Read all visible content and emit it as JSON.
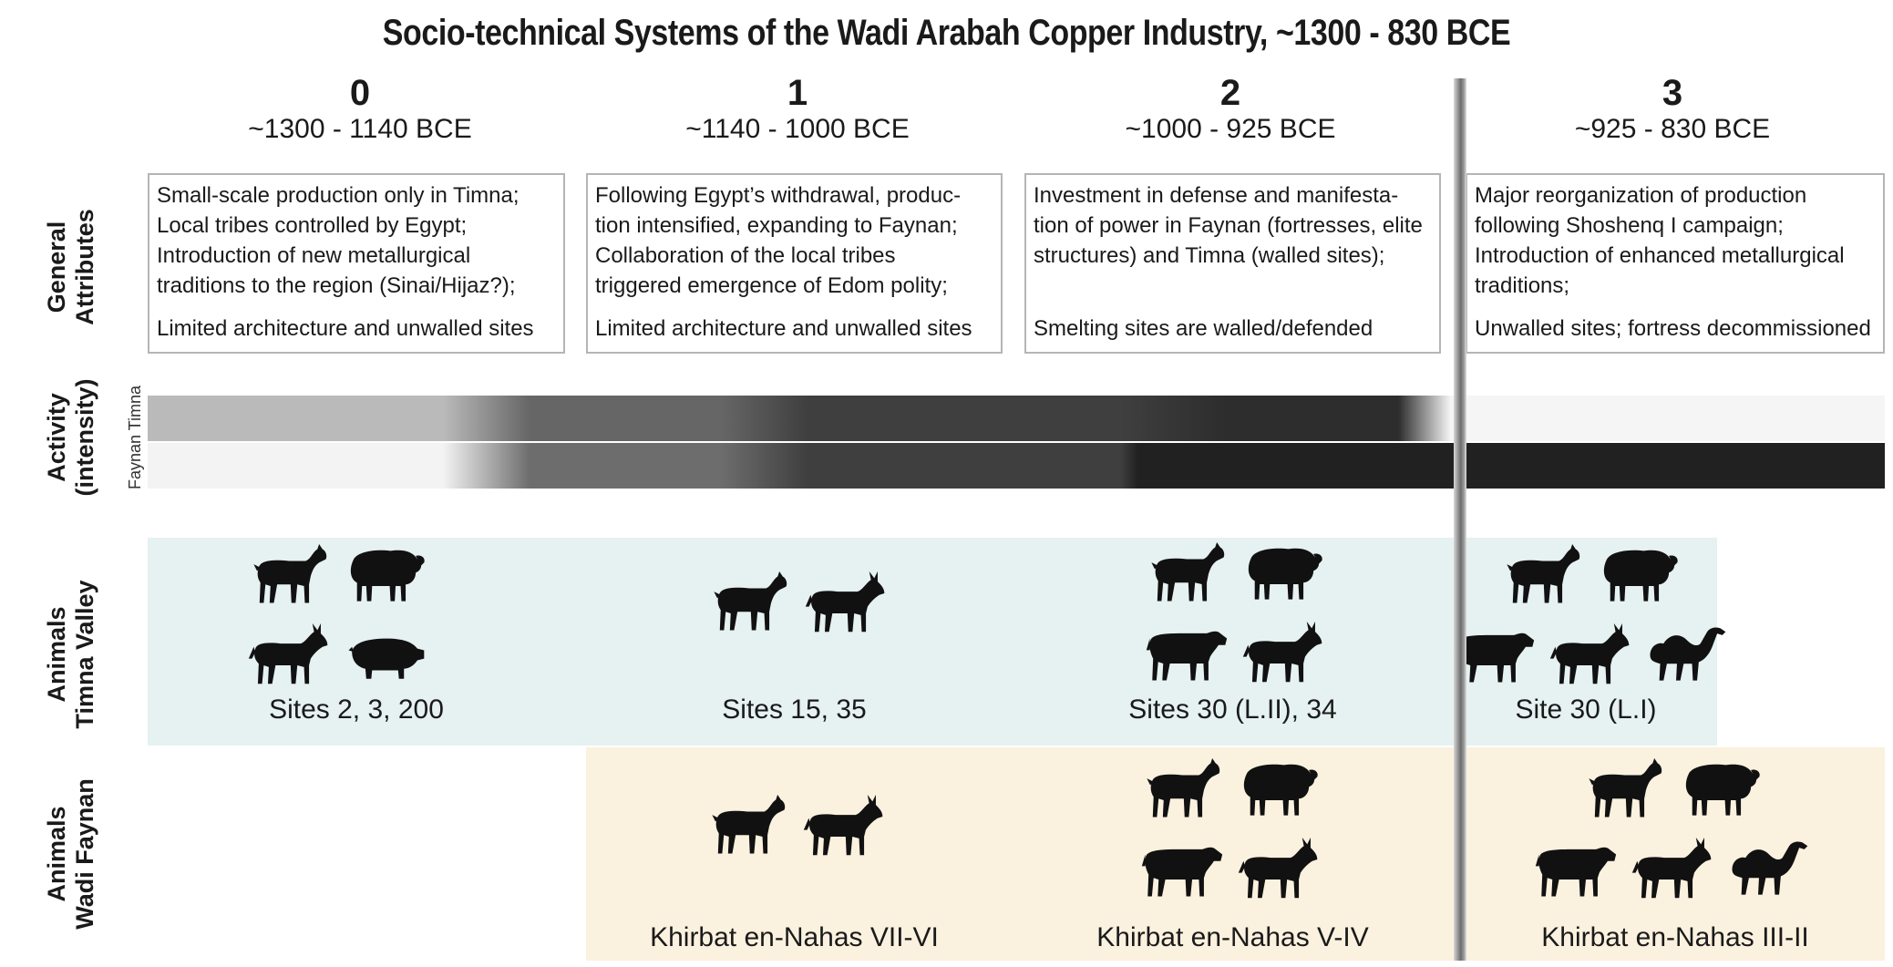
{
  "title": "Socio-technical Systems of the Wadi Arabah Copper Industry, ~1300 - 830 BCE",
  "colors": {
    "timna_zone": "#e6f1f1",
    "faynan_zone": "#fbf1df",
    "animal": "#111111",
    "box_border": "#b5b5b5"
  },
  "periods": [
    {
      "number": "0",
      "dates": "~1300 - 1140 BCE"
    },
    {
      "number": "1",
      "dates": "~1140 - 1000 BCE"
    },
    {
      "number": "2",
      "dates": "~1000 - 925 BCE"
    },
    {
      "number": "3",
      "dates": "~925 - 830 BCE"
    }
  ],
  "row_labels": {
    "general": [
      "General",
      "Attributes"
    ],
    "activity": [
      "Activity",
      "(intensity)"
    ],
    "activity_sub": "Faynan  Timna",
    "animals_timna": [
      "Animals",
      "Timna Valley"
    ],
    "animals_faynan": [
      "Animals",
      "Wadi Faynan"
    ]
  },
  "attributes": [
    {
      "lines": [
        "Small-scale production only in Timna;",
        "Local tribes controlled by Egypt;",
        "Introduction of new metallurgical",
        "traditions to the region (Sinai/Hijaz?);"
      ],
      "footer": "Limited architecture and unwalled sites"
    },
    {
      "lines": [
        "Following Egypt’s withdrawal, produc-",
        "tion intensified, expanding to Faynan;",
        "Collaboration of the local tribes",
        "triggered emergence of Edom polity;"
      ],
      "footer": "Limited architecture and unwalled sites"
    },
    {
      "lines": [
        "Investment in defense and manifesta-",
        "tion of power in Faynan (fortresses, elite",
        "structures) and Timna (walled sites);"
      ],
      "footer": "Smelting sites are walled/defended"
    },
    {
      "lines": [
        "Major reorganization of production",
        "following Shoshenq I campaign;",
        "Introduction of enhanced metallurgical",
        "traditions;"
      ],
      "footer": "Unwalled sites; fortress decommissioned"
    }
  ],
  "activity": {
    "timna_intensity": [
      0.28,
      0.65,
      0.82,
      0.9,
      0.02
    ],
    "faynan_intensity": [
      0.03,
      0.62,
      0.82,
      0.95
    ]
  },
  "animals_timna": [
    {
      "animals": [
        "goat-icon",
        "sheep-icon",
        "donkey-icon",
        "pig-icon"
      ],
      "sites": "Sites 2, 3, 200"
    },
    {
      "animals": [
        "goat-icon",
        "donkey-icon"
      ],
      "sites": "Sites 15, 35"
    },
    {
      "animals": [
        "goat-icon",
        "sheep-icon",
        "cattle-icon",
        "donkey-icon"
      ],
      "sites": "Sites 30 (L.II), 34"
    },
    {
      "animals": [
        "goat-icon",
        "sheep-icon",
        "cattle-icon",
        "donkey-icon",
        "camel-icon"
      ],
      "sites": "Site 30 (L.I)"
    }
  ],
  "animals_faynan": [
    {
      "animals": [
        "goat-icon",
        "donkey-icon"
      ],
      "sites": "Khirbat en-Nahas VII-VI"
    },
    {
      "animals": [
        "goat-icon",
        "sheep-icon",
        "cattle-icon",
        "donkey-icon"
      ],
      "sites": "Khirbat en-Nahas V-IV"
    },
    {
      "animals": [
        "goat-icon",
        "sheep-icon",
        "cattle-icon",
        "donkey-icon",
        "camel-icon"
      ],
      "sites": "Khirbat en-Nahas III-II"
    }
  ]
}
